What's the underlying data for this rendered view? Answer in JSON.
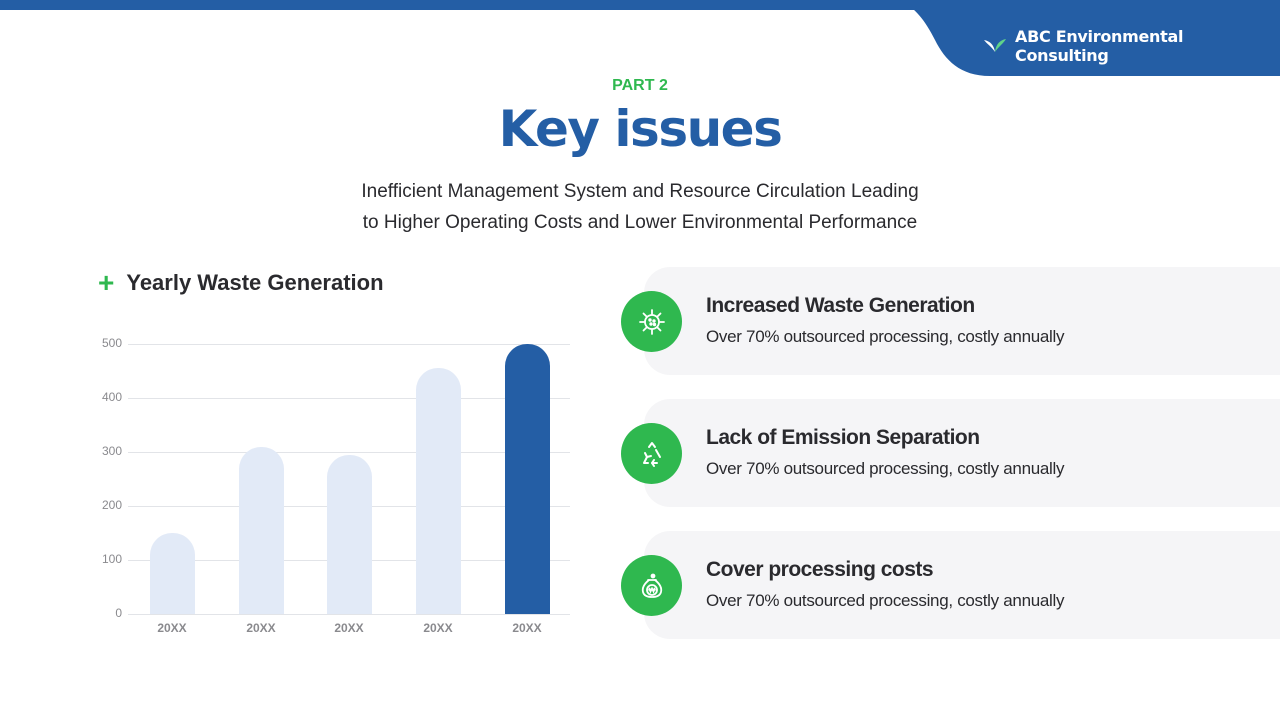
{
  "header": {
    "brand_name": "ABC Environmental Consulting",
    "brand_icon": "sprout-icon",
    "colors": {
      "primary": "#245ea5",
      "accent": "#2fb84f"
    }
  },
  "intro": {
    "part_label": "PART 2",
    "title": "Key issues",
    "subtitle_line1": "Inefficient Management System and Resource Circulation Leading",
    "subtitle_line2": "to Higher Operating Costs and Lower Environmental Performance"
  },
  "chart_section": {
    "title": "Yearly Waste Generation",
    "title_icon": "plus-icon"
  },
  "chart_data": {
    "type": "bar",
    "title": "Yearly Waste Generation",
    "categories": [
      "20XX",
      "20XX",
      "20XX",
      "20XX",
      "20XX"
    ],
    "values": [
      150,
      310,
      295,
      455,
      500
    ],
    "highlight_index": 4,
    "yticks": [
      "0",
      "100",
      "200",
      "300",
      "400",
      "500"
    ],
    "ylim": [
      0,
      500
    ],
    "xlabel": "",
    "ylabel": "",
    "grid": true,
    "legend": "none",
    "colors": {
      "default": "#e2eaf7",
      "highlight": "#245ea5"
    }
  },
  "issues": [
    {
      "icon": "virus-icon",
      "title": "Increased Waste Generation",
      "description": "Over 70% outsourced processing, costly annually"
    },
    {
      "icon": "recycle-icon",
      "title": "Lack of Emission Separation",
      "description": "Over 70% outsourced processing, costly annually"
    },
    {
      "icon": "money-bag-icon",
      "title": "Cover processing costs",
      "description": "Over 70% outsourced processing, costly annually"
    }
  ]
}
